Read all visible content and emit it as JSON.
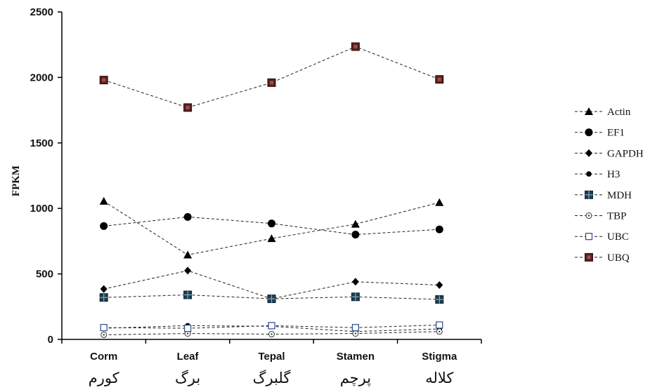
{
  "chart_data": {
    "type": "line",
    "title": "",
    "xlabel": "",
    "ylabel": "FPKM",
    "ylim": [
      0,
      2500
    ],
    "yticks": [
      0,
      500,
      1000,
      1500,
      2000,
      2500
    ],
    "grid": false,
    "legend_position": "right",
    "line_style": "dashed",
    "categories": [
      "Corm",
      "Leaf",
      "Tepal",
      "Stamen",
      "Stigma"
    ],
    "categories_fa": [
      "کورم",
      "برگ",
      "گلبرگ",
      "پرچم",
      "کلاله"
    ],
    "series": [
      {
        "name": "Actin",
        "marker": "triangle-filled",
        "color": "#000000",
        "values": [
          1055,
          645,
          770,
          880,
          1045
        ]
      },
      {
        "name": "EF1",
        "marker": "circle-filled-large",
        "color": "#000000",
        "values": [
          865,
          935,
          885,
          800,
          840
        ]
      },
      {
        "name": "GAPDH",
        "marker": "diamond-filled",
        "color": "#000000",
        "values": [
          385,
          525,
          310,
          440,
          415
        ]
      },
      {
        "name": "H3",
        "marker": "circle-filled-small",
        "color": "#000000",
        "values": [
          85,
          105,
          100,
          60,
          80
        ]
      },
      {
        "name": "MDH",
        "marker": "square-cross",
        "color": "#1f3b4d",
        "values": [
          320,
          340,
          310,
          325,
          305
        ]
      },
      {
        "name": "TBP",
        "marker": "circle-open-dot",
        "color": "#000000",
        "values": [
          35,
          45,
          40,
          45,
          60
        ]
      },
      {
        "name": "UBC",
        "marker": "square-open",
        "color": "#2a4a8a",
        "values": [
          90,
          85,
          105,
          90,
          110
        ]
      },
      {
        "name": "UBQ",
        "marker": "square-maroon",
        "color": "#5a1f1f",
        "values": [
          1980,
          1770,
          1960,
          2235,
          1985
        ]
      }
    ]
  }
}
